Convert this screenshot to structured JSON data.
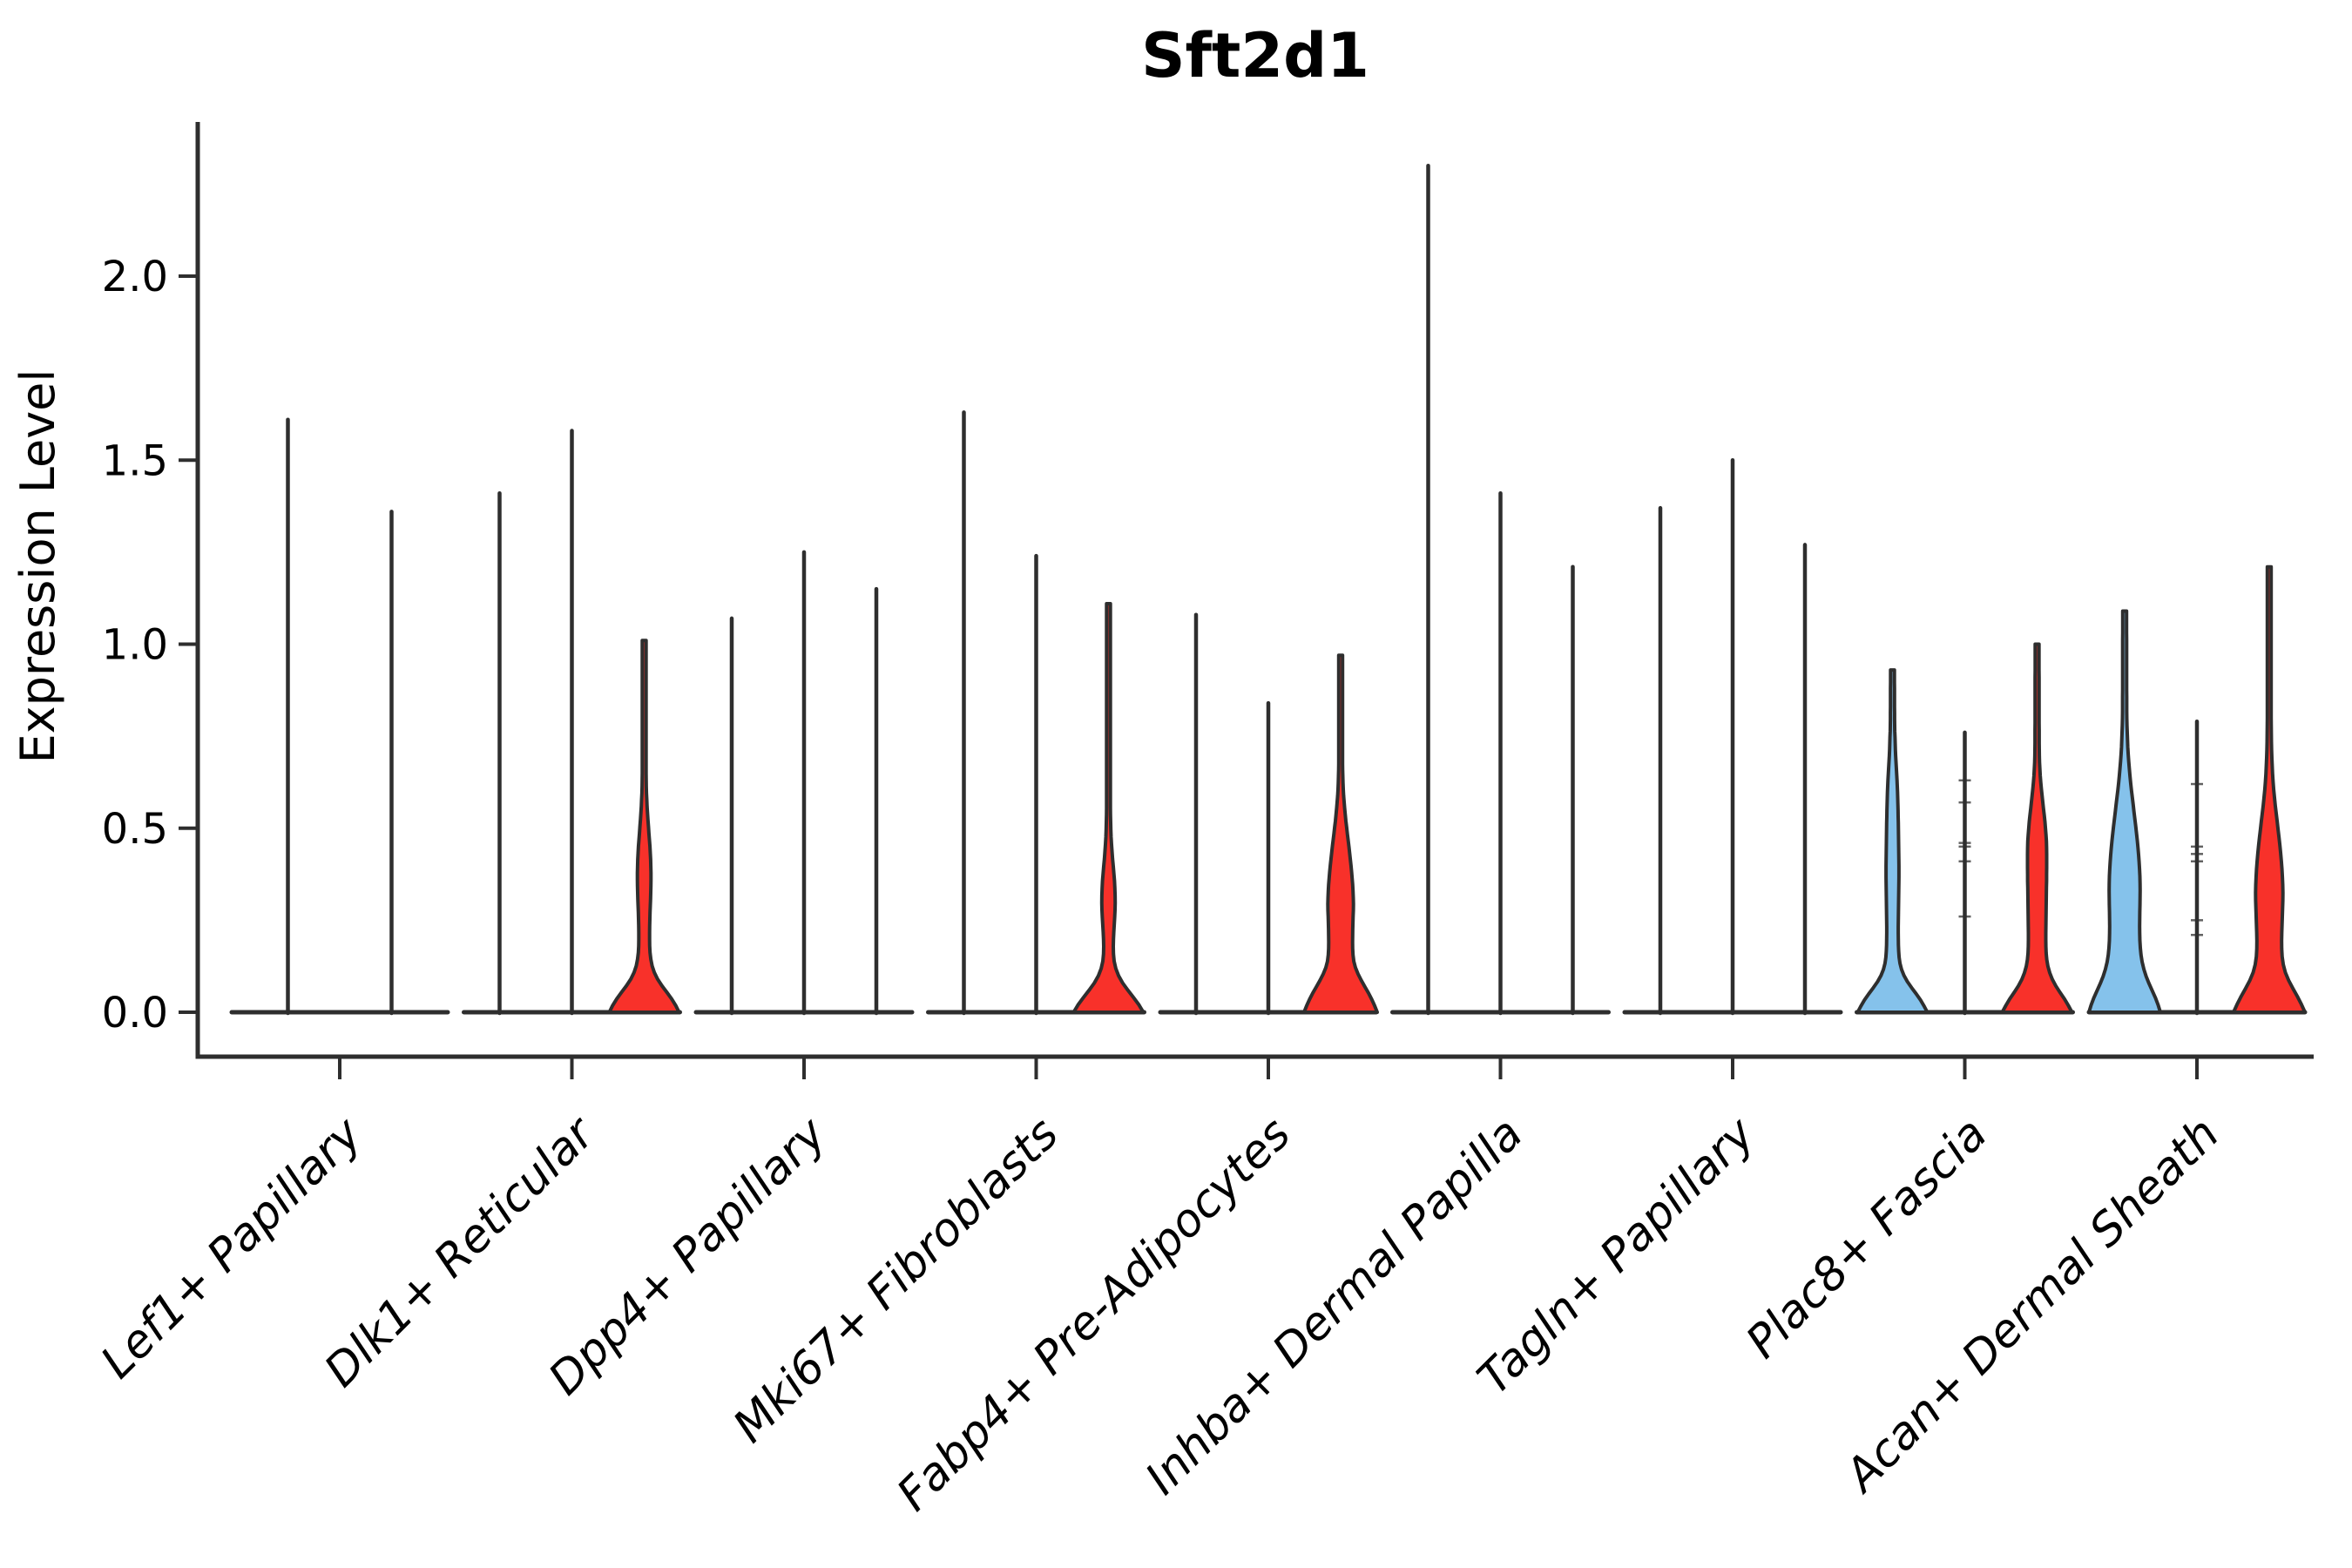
{
  "title": "Sft2d1",
  "chart_data": {
    "type": "violin",
    "title": "Sft2d1",
    "ylabel": "Expression Level",
    "xlabel": "",
    "ylim": [
      -0.12,
      2.42
    ],
    "grid": false,
    "legend": "none",
    "yticks": [
      0.0,
      0.5,
      1.0,
      1.5,
      2.0
    ],
    "ytick_labels": [
      "0.0",
      "0.5",
      "1.0",
      "1.5",
      "2.0"
    ],
    "colors": {
      "red_fill": "#F8312A",
      "blue_fill": "#85C2EB",
      "outline": "#2E2E2E",
      "text": "#000000"
    },
    "groups": [
      {
        "category": "Lef1+ Papillary",
        "violins": [
          {
            "max": 1.61,
            "fill": "none"
          },
          {
            "max": 1.36,
            "fill": "none"
          }
        ]
      },
      {
        "category": "Dlk1+ Reticular",
        "violins": [
          {
            "max": 1.41,
            "fill": "none"
          },
          {
            "max": 1.58,
            "fill": "none"
          },
          {
            "max": 1.01,
            "fill": "red",
            "profile": [
              [
                0,
                40
              ],
              [
                0.02,
                37
              ],
              [
                0.05,
                28
              ],
              [
                0.08,
                17
              ],
              [
                0.11,
                10
              ],
              [
                0.15,
                6.5
              ],
              [
                0.2,
                6
              ],
              [
                0.26,
                6.5
              ],
              [
                0.32,
                7.5
              ],
              [
                0.38,
                8
              ],
              [
                0.44,
                7
              ],
              [
                0.5,
                5
              ],
              [
                0.56,
                3.2
              ],
              [
                0.62,
                2.2
              ],
              [
                1.01,
                2.2
              ]
            ]
          }
        ]
      },
      {
        "category": "Dpp4+ Papillary",
        "violins": [
          {
            "max": 1.07,
            "fill": "none"
          },
          {
            "max": 1.25,
            "fill": "none"
          },
          {
            "max": 1.15,
            "fill": "none"
          }
        ]
      },
      {
        "category": "Mki67+ Fibroblasts",
        "violins": [
          {
            "max": 1.63,
            "fill": "none"
          },
          {
            "max": 1.24,
            "fill": "none"
          },
          {
            "max": 1.11,
            "fill": "red",
            "profile": [
              [
                0,
                40
              ],
              [
                0.02,
                36
              ],
              [
                0.05,
                26
              ],
              [
                0.08,
                15
              ],
              [
                0.11,
                8
              ],
              [
                0.15,
                5
              ],
              [
                0.2,
                5.5
              ],
              [
                0.25,
                7
              ],
              [
                0.3,
                8
              ],
              [
                0.36,
                7
              ],
              [
                0.42,
                4.5
              ],
              [
                0.48,
                2.8
              ],
              [
                0.54,
                2.2
              ],
              [
                1.11,
                2.2
              ]
            ]
          }
        ]
      },
      {
        "category": "Fabp4+ Pre-Adipocytes",
        "violins": [
          {
            "max": 1.08,
            "fill": "none"
          },
          {
            "max": 0.84,
            "fill": "none"
          },
          {
            "max": 0.97,
            "fill": "red",
            "profile": [
              [
                0,
                42
              ],
              [
                0.02,
                39
              ],
              [
                0.05,
                33
              ],
              [
                0.08,
                25
              ],
              [
                0.11,
                18
              ],
              [
                0.14,
                14
              ],
              [
                0.18,
                13.5
              ],
              [
                0.24,
                14
              ],
              [
                0.3,
                15
              ],
              [
                0.36,
                13.5
              ],
              [
                0.42,
                11
              ],
              [
                0.48,
                8
              ],
              [
                0.54,
                5
              ],
              [
                0.6,
                3
              ],
              [
                0.66,
                2.2
              ],
              [
                0.97,
                2.2
              ]
            ]
          }
        ]
      },
      {
        "category": "Inhba+ Dermal Papilla",
        "violins": [
          {
            "max": 2.3,
            "fill": "none"
          },
          {
            "max": 1.41,
            "fill": "none"
          },
          {
            "max": 1.21,
            "fill": "none"
          }
        ]
      },
      {
        "category": "Tagln+ Papillary",
        "violins": [
          {
            "max": 1.37,
            "fill": "none"
          },
          {
            "max": 1.5,
            "fill": "none"
          },
          {
            "max": 1.27,
            "fill": "none"
          }
        ]
      },
      {
        "category": "Plac8+ Fascia",
        "violins": [
          {
            "max": 0.93,
            "fill": "blue",
            "profile": [
              [
                0,
                40
              ],
              [
                0.02,
                36
              ],
              [
                0.05,
                28
              ],
              [
                0.08,
                17
              ],
              [
                0.11,
                10
              ],
              [
                0.15,
                7
              ],
              [
                0.22,
                6.5
              ],
              [
                0.3,
                7
              ],
              [
                0.38,
                7.5
              ],
              [
                0.46,
                7
              ],
              [
                0.54,
                6.5
              ],
              [
                0.62,
                5.5
              ],
              [
                0.7,
                3.5
              ],
              [
                0.78,
                2.4
              ],
              [
                0.93,
                2.2
              ]
            ]
          },
          {
            "max": 0.76,
            "fill": "none",
            "points": [
              0.63,
              0.57,
              0.46,
              0.45,
              0.41,
              0.26
            ]
          },
          {
            "max": 1.0,
            "fill": "red",
            "profile": [
              [
                0,
                40
              ],
              [
                0.02,
                36
              ],
              [
                0.05,
                28
              ],
              [
                0.08,
                18
              ],
              [
                0.12,
                12
              ],
              [
                0.16,
                10
              ],
              [
                0.22,
                10
              ],
              [
                0.3,
                10.5
              ],
              [
                0.38,
                11
              ],
              [
                0.46,
                11
              ],
              [
                0.52,
                9
              ],
              [
                0.58,
                6
              ],
              [
                0.64,
                3.5
              ],
              [
                0.7,
                2.4
              ],
              [
                1.0,
                2.2
              ]
            ]
          }
        ]
      },
      {
        "category": "Acan+ Dermal Sheath",
        "violins": [
          {
            "max": 1.09,
            "fill": "blue",
            "profile": [
              [
                0,
                41
              ],
              [
                0.02,
                39
              ],
              [
                0.05,
                34
              ],
              [
                0.08,
                27
              ],
              [
                0.12,
                21
              ],
              [
                0.16,
                18
              ],
              [
                0.22,
                17
              ],
              [
                0.28,
                17.5
              ],
              [
                0.34,
                18
              ],
              [
                0.4,
                17
              ],
              [
                0.46,
                15
              ],
              [
                0.52,
                12
              ],
              [
                0.58,
                9
              ],
              [
                0.64,
                6
              ],
              [
                0.72,
                3.5
              ],
              [
                0.8,
                2.4
              ],
              [
                1.09,
                2.2
              ]
            ]
          },
          {
            "max": 0.79,
            "fill": "none",
            "points": [
              0.62,
              0.45,
              0.43,
              0.41,
              0.25,
              0.21
            ]
          },
          {
            "max": 1.21,
            "fill": "red",
            "profile": [
              [
                0,
                41
              ],
              [
                0.02,
                38
              ],
              [
                0.05,
                31
              ],
              [
                0.08,
                23
              ],
              [
                0.11,
                17
              ],
              [
                0.15,
                14
              ],
              [
                0.2,
                14
              ],
              [
                0.26,
                15
              ],
              [
                0.33,
                16
              ],
              [
                0.4,
                14.5
              ],
              [
                0.46,
                12
              ],
              [
                0.52,
                9
              ],
              [
                0.58,
                6
              ],
              [
                0.64,
                3.8
              ],
              [
                0.72,
                2.5
              ],
              [
                0.8,
                2.2
              ],
              [
                1.21,
                2.2
              ]
            ]
          }
        ]
      }
    ]
  }
}
